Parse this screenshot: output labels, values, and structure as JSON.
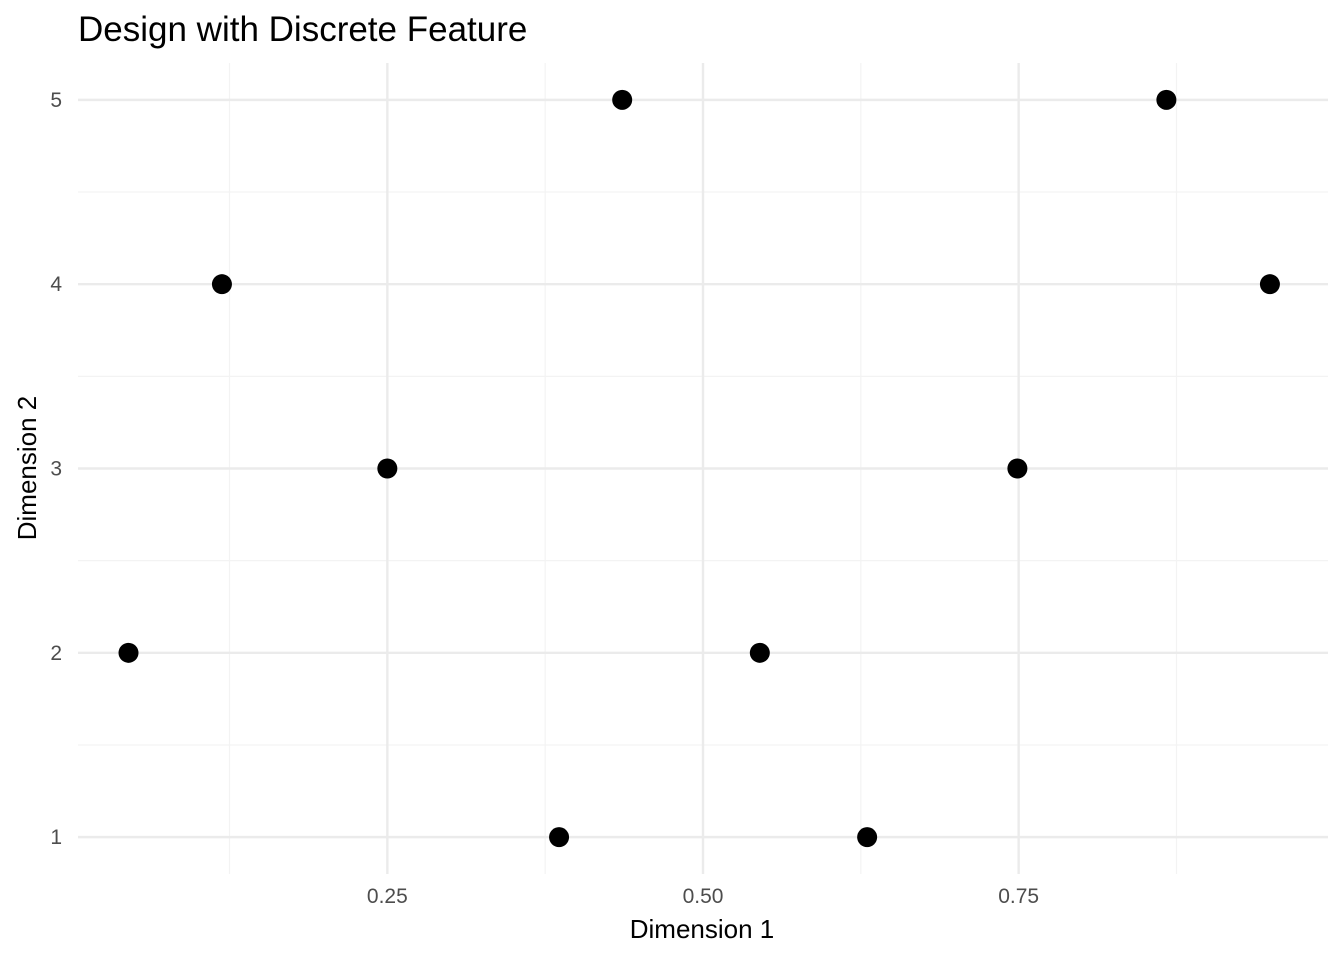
{
  "chart_data": {
    "type": "scatter",
    "title": "Design with Discrete Feature",
    "xlabel": "Dimension 1",
    "ylabel": "Dimension 2",
    "xlim": [
      0.005,
      0.995
    ],
    "ylim": [
      0.8,
      5.2
    ],
    "x_ticks": [
      {
        "value": 0.25,
        "label": "0.25"
      },
      {
        "value": 0.5,
        "label": "0.50"
      },
      {
        "value": 0.75,
        "label": "0.75"
      }
    ],
    "x_minor_ticks": [
      0.125,
      0.375,
      0.625,
      0.875
    ],
    "y_ticks": [
      {
        "value": 1,
        "label": "1"
      },
      {
        "value": 2,
        "label": "2"
      },
      {
        "value": 3,
        "label": "3"
      },
      {
        "value": 4,
        "label": "4"
      },
      {
        "value": 5,
        "label": "5"
      }
    ],
    "y_minor_ticks": [
      1.5,
      2.5,
      3.5,
      4.5
    ],
    "grid": true,
    "legend": "none",
    "points": [
      {
        "x": 0.045,
        "y": 2
      },
      {
        "x": 0.119,
        "y": 4
      },
      {
        "x": 0.25,
        "y": 3
      },
      {
        "x": 0.386,
        "y": 1
      },
      {
        "x": 0.436,
        "y": 5
      },
      {
        "x": 0.545,
        "y": 2
      },
      {
        "x": 0.63,
        "y": 1
      },
      {
        "x": 0.749,
        "y": 3
      },
      {
        "x": 0.867,
        "y": 5
      },
      {
        "x": 0.949,
        "y": 4
      }
    ],
    "point_color": "#000000",
    "grid_major_color": "#ebebeb",
    "grid_minor_color": "#f3f3f3"
  }
}
